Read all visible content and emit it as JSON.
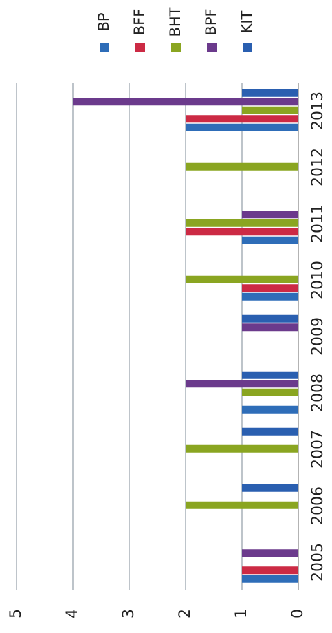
{
  "chart_data": {
    "type": "bar",
    "orientation": "horizontal-bars, rotated 90° (value axis runs along the bottom edge, categories down the right edge)",
    "categories": [
      "2005",
      "2006",
      "2007",
      "2008",
      "2009",
      "2010",
      "2011",
      "2012",
      "2013"
    ],
    "series": [
      {
        "name": "BP",
        "color": "#2e6db8",
        "values": [
          1,
          0,
          0,
          1,
          0,
          1,
          1,
          0,
          2
        ]
      },
      {
        "name": "BFF",
        "color": "#cc2a44",
        "values": [
          1,
          0,
          0,
          0,
          0,
          1,
          2,
          0,
          2
        ]
      },
      {
        "name": "BHT",
        "color": "#8aa521",
        "values": [
          0,
          2,
          2,
          1,
          0,
          2,
          2,
          2,
          1
        ]
      },
      {
        "name": "BPF",
        "color": "#6b3a8c",
        "values": [
          1,
          0,
          0,
          2,
          1,
          0,
          1,
          0,
          4
        ]
      },
      {
        "name": "KIT",
        "color": "#2a5fb0",
        "values": [
          0,
          1,
          1,
          1,
          1,
          0,
          0,
          0,
          1
        ]
      }
    ],
    "value_axis": {
      "min": 0,
      "max": 5,
      "ticks": [
        "0",
        "1",
        "2",
        "3",
        "4",
        "5"
      ]
    },
    "grid": true,
    "legend_placement": "top"
  }
}
